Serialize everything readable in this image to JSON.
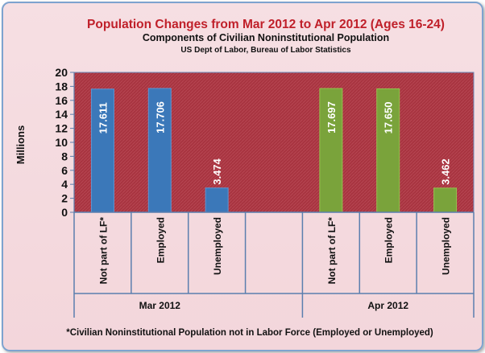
{
  "chart_data": {
    "type": "bar",
    "title": "Population Changes  from Mar 2012 to Apr 2012 (Ages 16-24)",
    "subtitle": "Components of Civilian Noninstitutional Population",
    "source": "US Dept of Labor, Bureau of Labor Statistics",
    "ylabel": "Millions",
    "ylim": [
      0,
      20
    ],
    "yticks": [
      "0",
      "2",
      "4",
      "6",
      "8",
      "10",
      "12",
      "14",
      "16",
      "18",
      "20"
    ],
    "footnote": "*Civilian Noninstitutional Population not in Labor Force (Employed or Unemployed)",
    "colors": {
      "mar": "#3b78b9",
      "apr": "#7aa33b",
      "plot_bg": "#a83440"
    },
    "groups": [
      {
        "name": "Mar 2012",
        "color_key": "mar",
        "categories": [
          "Not part of LF*",
          "Employed",
          "Unemployed"
        ],
        "values": [
          17.611,
          17.706,
          3.474
        ],
        "labels": [
          "17.611",
          "17.706",
          "3.474"
        ]
      },
      {
        "name": "Apr 2012",
        "color_key": "apr",
        "categories": [
          "Not part of LF*",
          "Employed",
          "Unemployed"
        ],
        "values": [
          17.697,
          17.65,
          3.462
        ],
        "labels": [
          "17.697",
          "17.650",
          "3.462"
        ]
      }
    ]
  }
}
